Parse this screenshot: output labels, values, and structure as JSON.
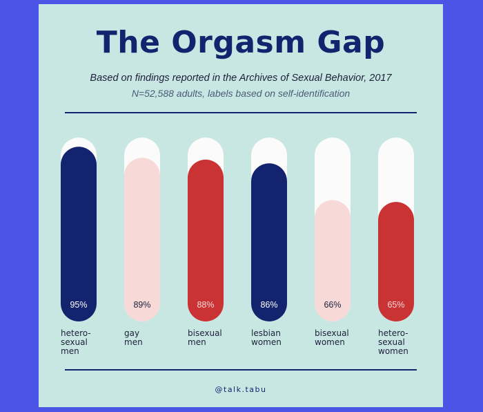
{
  "title": "The Orgasm Gap",
  "subtitle": "Based on findings reported in the Archives of Sexual Behavior, 2017",
  "note": "N=52,588 adults, labels based on self-identification",
  "credit": "@talk.tabu",
  "colors": {
    "background": "#4a55e6",
    "card": "#c9e7e2",
    "track": "#fbfbfb",
    "navy": "#14236e",
    "pink": "#f7d9d7",
    "red": "#c93333"
  },
  "chart_data": {
    "type": "bar",
    "title": "The Orgasm Gap",
    "ylabel": "",
    "xlabel": "",
    "ylim": [
      0,
      100
    ],
    "grid": false,
    "categories": [
      [
        "hetero-",
        "sexual",
        "men"
      ],
      [
        "gay",
        "men"
      ],
      [
        "bisexual",
        "men"
      ],
      [
        "lesbian",
        "women"
      ],
      [
        "bisexual",
        "women"
      ],
      [
        "hetero-",
        "sexual",
        "women"
      ]
    ],
    "values": [
      95,
      89,
      88,
      86,
      66,
      65
    ],
    "value_labels": [
      "95%",
      "89%",
      "88%",
      "86%",
      "66%",
      "65%"
    ],
    "bar_colors": [
      "#14236e",
      "#f7d9d7",
      "#c93333",
      "#14236e",
      "#f7d9d7",
      "#c93333"
    ],
    "label_colors": [
      "#ffffff",
      "#1b1f3a",
      "#f7d9d7",
      "#ffffff",
      "#1b1f3a",
      "#f7d9d7"
    ]
  }
}
